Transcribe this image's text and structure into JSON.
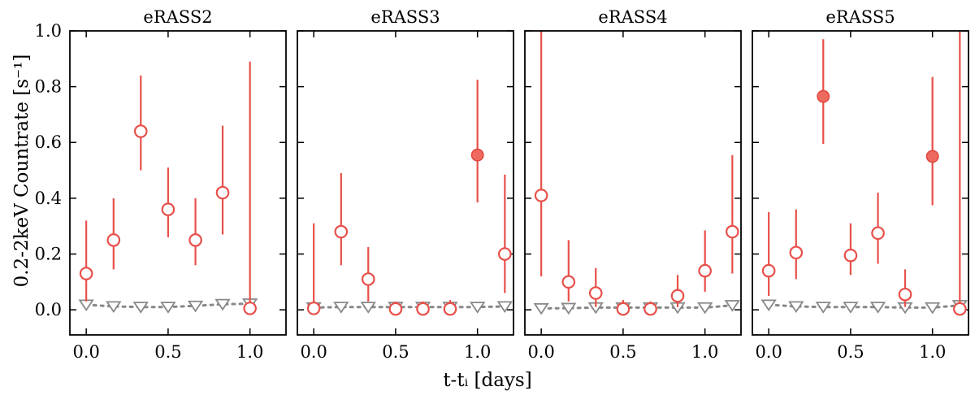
{
  "chart_data": {
    "type": "scatter",
    "ylabel": "0.2-2keV Countrate [s⁻¹]",
    "xlabel": "t-tᵢ [days]",
    "ylim": [
      -0.09,
      1.0
    ],
    "xlim": [
      -0.1,
      1.22
    ],
    "yticks": [
      0.0,
      0.2,
      0.4,
      0.6,
      0.8,
      1.0
    ],
    "ytick_labels": [
      "0.0",
      "0.2",
      "0.4",
      "0.6",
      "0.8",
      "1.0"
    ],
    "xticks": [
      0.0,
      0.5,
      1.0
    ],
    "xtick_labels": [
      "0.0",
      "0.5",
      "1.0"
    ],
    "colors": {
      "source": "#e8504a",
      "background": "#888888"
    },
    "panels": [
      {
        "title": "eRASS2",
        "points": [
          {
            "x": 0.0,
            "y": 0.13,
            "lo": 0.03,
            "hi": 0.32,
            "filled": false
          },
          {
            "x": 0.167,
            "y": 0.25,
            "lo": 0.145,
            "hi": 0.4,
            "filled": false
          },
          {
            "x": 0.333,
            "y": 0.64,
            "lo": 0.5,
            "hi": 0.84,
            "filled": false
          },
          {
            "x": 0.5,
            "y": 0.36,
            "lo": 0.26,
            "hi": 0.51,
            "filled": false
          },
          {
            "x": 0.667,
            "y": 0.25,
            "lo": 0.16,
            "hi": 0.4,
            "filled": false
          },
          {
            "x": 0.833,
            "y": 0.42,
            "lo": 0.27,
            "hi": 0.66,
            "filled": false
          },
          {
            "x": 1.0,
            "y": 0.005,
            "lo": 0.0,
            "hi": 0.89,
            "filled": false
          }
        ],
        "background": [
          {
            "x": 0.0,
            "y": 0.018
          },
          {
            "x": 0.167,
            "y": 0.012
          },
          {
            "x": 0.333,
            "y": 0.01
          },
          {
            "x": 0.5,
            "y": 0.01
          },
          {
            "x": 0.667,
            "y": 0.014
          },
          {
            "x": 0.833,
            "y": 0.02
          },
          {
            "x": 1.0,
            "y": 0.022
          }
        ]
      },
      {
        "title": "eRASS3",
        "points": [
          {
            "x": 0.0,
            "y": 0.005,
            "lo": 0.0,
            "hi": 0.31,
            "filled": false
          },
          {
            "x": 0.167,
            "y": 0.28,
            "lo": 0.16,
            "hi": 0.49,
            "filled": false
          },
          {
            "x": 0.333,
            "y": 0.11,
            "lo": 0.03,
            "hi": 0.225,
            "filled": false
          },
          {
            "x": 0.5,
            "y": 0.003,
            "lo": 0.0,
            "hi": 0.03,
            "filled": false
          },
          {
            "x": 0.667,
            "y": 0.003,
            "lo": 0.0,
            "hi": 0.03,
            "filled": false
          },
          {
            "x": 0.833,
            "y": 0.003,
            "lo": 0.0,
            "hi": 0.035,
            "filled": false
          },
          {
            "x": 1.0,
            "y": 0.555,
            "lo": 0.385,
            "hi": 0.825,
            "filled": true
          },
          {
            "x": 1.167,
            "y": 0.2,
            "lo": 0.06,
            "hi": 0.485,
            "filled": false
          }
        ],
        "background": [
          {
            "x": 0.0,
            "y": 0.008
          },
          {
            "x": 0.167,
            "y": 0.01
          },
          {
            "x": 0.333,
            "y": 0.01
          },
          {
            "x": 0.5,
            "y": 0.01
          },
          {
            "x": 0.667,
            "y": 0.01
          },
          {
            "x": 0.833,
            "y": 0.01
          },
          {
            "x": 1.0,
            "y": 0.01
          },
          {
            "x": 1.167,
            "y": 0.012
          }
        ]
      },
      {
        "title": "eRASS4",
        "points": [
          {
            "x": 0.0,
            "y": 0.41,
            "lo": 0.12,
            "hi": 1.0,
            "filled": false
          },
          {
            "x": 0.167,
            "y": 0.1,
            "lo": 0.03,
            "hi": 0.25,
            "filled": false
          },
          {
            "x": 0.333,
            "y": 0.06,
            "lo": 0.01,
            "hi": 0.15,
            "filled": false
          },
          {
            "x": 0.5,
            "y": 0.003,
            "lo": 0.0,
            "hi": 0.035,
            "filled": false
          },
          {
            "x": 0.667,
            "y": 0.003,
            "lo": 0.0,
            "hi": 0.03,
            "filled": false
          },
          {
            "x": 0.833,
            "y": 0.05,
            "lo": 0.01,
            "hi": 0.125,
            "filled": false
          },
          {
            "x": 1.0,
            "y": 0.14,
            "lo": 0.065,
            "hi": 0.285,
            "filled": false
          },
          {
            "x": 1.167,
            "y": 0.28,
            "lo": 0.13,
            "hi": 0.555,
            "filled": false
          }
        ],
        "background": [
          {
            "x": 0.0,
            "y": 0.005
          },
          {
            "x": 0.167,
            "y": 0.006
          },
          {
            "x": 0.333,
            "y": 0.008
          },
          {
            "x": 0.5,
            "y": 0.008
          },
          {
            "x": 0.667,
            "y": 0.008
          },
          {
            "x": 0.833,
            "y": 0.008
          },
          {
            "x": 1.0,
            "y": 0.008
          },
          {
            "x": 1.167,
            "y": 0.016
          }
        ]
      },
      {
        "title": "eRASS5",
        "points": [
          {
            "x": 0.0,
            "y": 0.14,
            "lo": 0.05,
            "hi": 0.35,
            "filled": false
          },
          {
            "x": 0.167,
            "y": 0.205,
            "lo": 0.11,
            "hi": 0.36,
            "filled": false
          },
          {
            "x": 0.333,
            "y": 0.765,
            "lo": 0.595,
            "hi": 0.97,
            "filled": true
          },
          {
            "x": 0.5,
            "y": 0.195,
            "lo": 0.125,
            "hi": 0.31,
            "filled": false
          },
          {
            "x": 0.667,
            "y": 0.275,
            "lo": 0.165,
            "hi": 0.42,
            "filled": false
          },
          {
            "x": 0.833,
            "y": 0.055,
            "lo": 0.01,
            "hi": 0.145,
            "filled": false
          },
          {
            "x": 1.0,
            "y": 0.55,
            "lo": 0.375,
            "hi": 0.835,
            "filled": true
          },
          {
            "x": 1.167,
            "y": 0.003,
            "lo": 0.0,
            "hi": 1.0,
            "filled": false
          }
        ],
        "background": [
          {
            "x": 0.0,
            "y": 0.018
          },
          {
            "x": 0.167,
            "y": 0.012
          },
          {
            "x": 0.333,
            "y": 0.01
          },
          {
            "x": 0.5,
            "y": 0.01
          },
          {
            "x": 0.667,
            "y": 0.01
          },
          {
            "x": 0.833,
            "y": 0.008
          },
          {
            "x": 1.0,
            "y": 0.008
          },
          {
            "x": 1.167,
            "y": 0.016
          }
        ]
      }
    ]
  }
}
